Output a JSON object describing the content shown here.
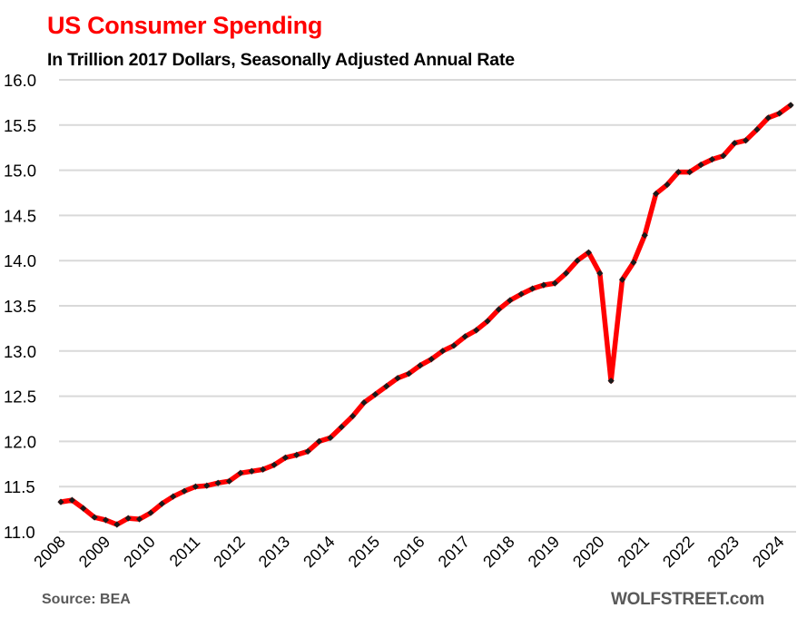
{
  "header": {
    "title": "US Consumer Spending",
    "subtitle": "In Trillion 2017 Dollars, Seasonally Adjusted Annual Rate"
  },
  "footer": {
    "source": "Source: BEA",
    "brand": "WOLFSTREET.com"
  },
  "colors": {
    "title": "#ff0000",
    "line": "#ff0000",
    "marker": "#1a1a1a",
    "grid": "#d9d9d9",
    "footer_text": "#595959"
  },
  "chart_data": {
    "type": "line",
    "title": "US Consumer Spending",
    "subtitle": "In Trillion 2017 Dollars, Seasonally Adjusted Annual Rate",
    "xlabel": "",
    "ylabel": "",
    "ylim": [
      11.0,
      16.0
    ],
    "yticks": [
      "11.0",
      "11.5",
      "12.0",
      "12.5",
      "13.0",
      "13.5",
      "14.0",
      "14.5",
      "15.0",
      "15.5",
      "16.0"
    ],
    "ytick_values": [
      11.0,
      11.5,
      12.0,
      12.5,
      13.0,
      13.5,
      14.0,
      14.5,
      15.0,
      15.5,
      16.0
    ],
    "xticks": [
      "2008",
      "2009",
      "2010",
      "2011",
      "2012",
      "2013",
      "2014",
      "2015",
      "2016",
      "2017",
      "2018",
      "2019",
      "2020",
      "2021",
      "2022",
      "2023",
      "2024"
    ],
    "frequency": "quarterly",
    "start": "2008 Q1",
    "end": "2024 Q2",
    "grid": "horizontal",
    "legend": "none",
    "series": [
      {
        "name": "US Consumer Spending",
        "values": [
          11.33,
          11.35,
          11.26,
          11.16,
          11.13,
          11.08,
          11.15,
          11.14,
          11.21,
          11.31,
          11.39,
          11.45,
          11.5,
          11.51,
          11.54,
          11.56,
          11.65,
          11.67,
          11.69,
          11.74,
          11.82,
          11.85,
          11.89,
          12.0,
          12.04,
          12.16,
          12.28,
          12.43,
          12.52,
          12.61,
          12.7,
          12.75,
          12.84,
          12.91,
          13.0,
          13.06,
          13.16,
          13.23,
          13.33,
          13.46,
          13.56,
          13.63,
          13.69,
          13.73,
          13.75,
          13.86,
          14.0,
          14.09,
          13.86,
          12.67,
          13.79,
          13.98,
          14.28,
          14.74,
          14.84,
          14.98,
          14.98,
          15.06,
          15.12,
          15.16,
          15.3,
          15.33,
          15.45,
          15.58,
          15.63,
          15.72
        ]
      }
    ]
  }
}
